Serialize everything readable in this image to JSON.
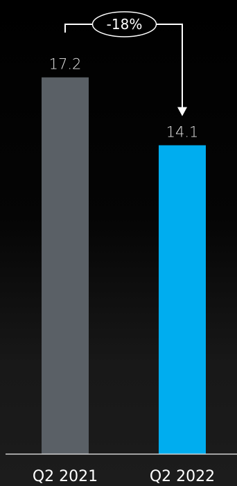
{
  "chart_data": {
    "type": "bar",
    "categories": [
      "Q2 2021",
      "Q2 2022"
    ],
    "values": [
      17.2,
      14.1
    ],
    "value_labels": [
      "17.2",
      "14.1"
    ],
    "change_annotation": "-18%",
    "title": "",
    "xlabel": "",
    "ylabel": "",
    "ylim": [
      0,
      18.2
    ],
    "grid": false,
    "legend": "none",
    "colors": {
      "bars": [
        "#5a6066",
        "#00adef"
      ],
      "text": "#ffffff",
      "axis": "#d0d0d0"
    }
  }
}
